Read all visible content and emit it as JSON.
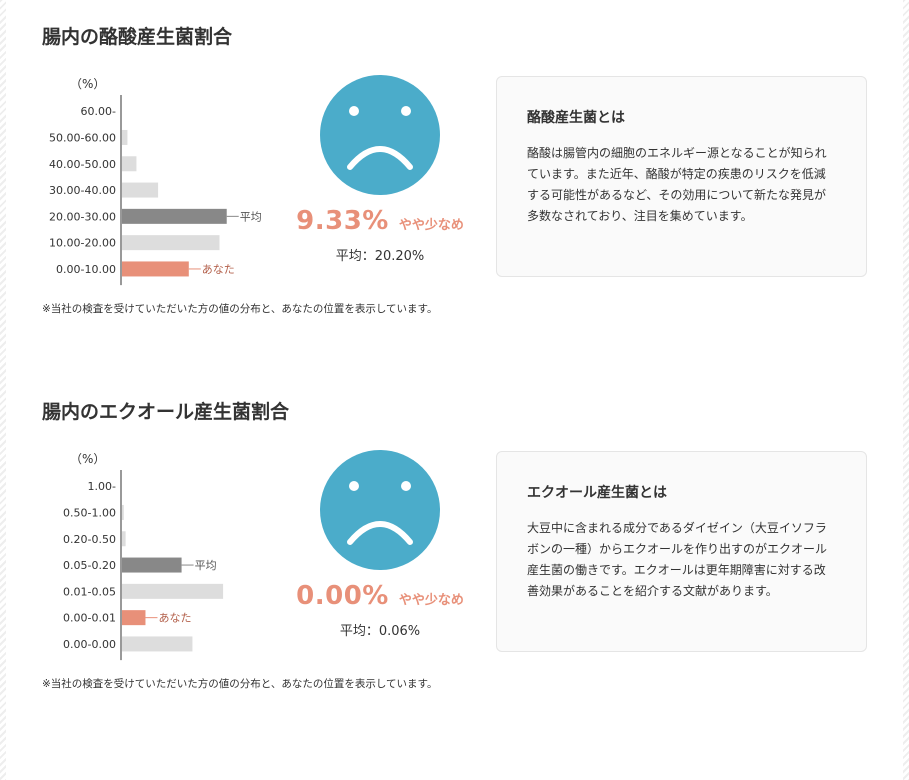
{
  "sections": [
    {
      "title": "腸内の酪酸産生菌割合",
      "value": "9.33%",
      "verdict": "やや少なめ",
      "average_text": "平均：20.20%",
      "note": "※当社の検査を受けていただいた方の値の分布と、あなたの位置を表示しています。",
      "info": {
        "title": "酪酸産生菌とは",
        "body": "酪酸は腸管内の細胞のエネルギー源となることが知られています。また近年、酪酸が特定の疾患のリスクを低減する可能性があるなど、その効用について新たな発見が多数なされており、注目を集めています。"
      },
      "face_icon": "sad-face-icon"
    },
    {
      "title": "腸内のエクオール産生菌割合",
      "value": "0.00%",
      "verdict": "やや少なめ",
      "average_text": "平均：0.06%",
      "note": "※当社の検査を受けていただいた方の値の分布と、あなたの位置を表示しています。",
      "info": {
        "title": "エクオール産生菌とは",
        "body": "大豆中に含まれる成分であるダイゼイン（大豆イソフラボンの一種）からエクオールを作り出すのがエクオール産生菌の働きです。エクオールは更年期障害に対する改善効果があることを紹介する文献があります。"
      },
      "face_icon": "sad-face-icon"
    }
  ],
  "colors": {
    "face": "#4bacca",
    "accent": "#e89079",
    "average_bar": "#888888",
    "other_bar": "#dddddd",
    "axis": "#333333"
  },
  "chart_data": [
    {
      "type": "bar",
      "orientation": "horizontal",
      "unit_label": "（%）",
      "categories": [
        "60.00-",
        "50.00-60.00",
        "40.00-50.00",
        "30.00-40.00",
        "20.00-30.00",
        "10.00-20.00",
        "0.00-10.00"
      ],
      "values": [
        0,
        1.5,
        4,
        10,
        29,
        27,
        18.5
      ],
      "xlim": [
        0,
        36
      ],
      "average_index": 4,
      "you_index": 6,
      "average_label": "平均",
      "you_label": "あなた"
    },
    {
      "type": "bar",
      "orientation": "horizontal",
      "unit_label": "（%）",
      "categories": [
        "1.00-",
        "0.50-1.00",
        "0.20-0.50",
        "0.05-0.20",
        "0.01-0.05",
        "0.00-0.01",
        "0.00-0.00"
      ],
      "values": [
        0,
        0.5,
        1,
        16.5,
        28,
        6.5,
        19.5
      ],
      "xlim": [
        0,
        36
      ],
      "average_index": 3,
      "you_index": 5,
      "average_label": "平均",
      "you_label": "あなた"
    }
  ]
}
